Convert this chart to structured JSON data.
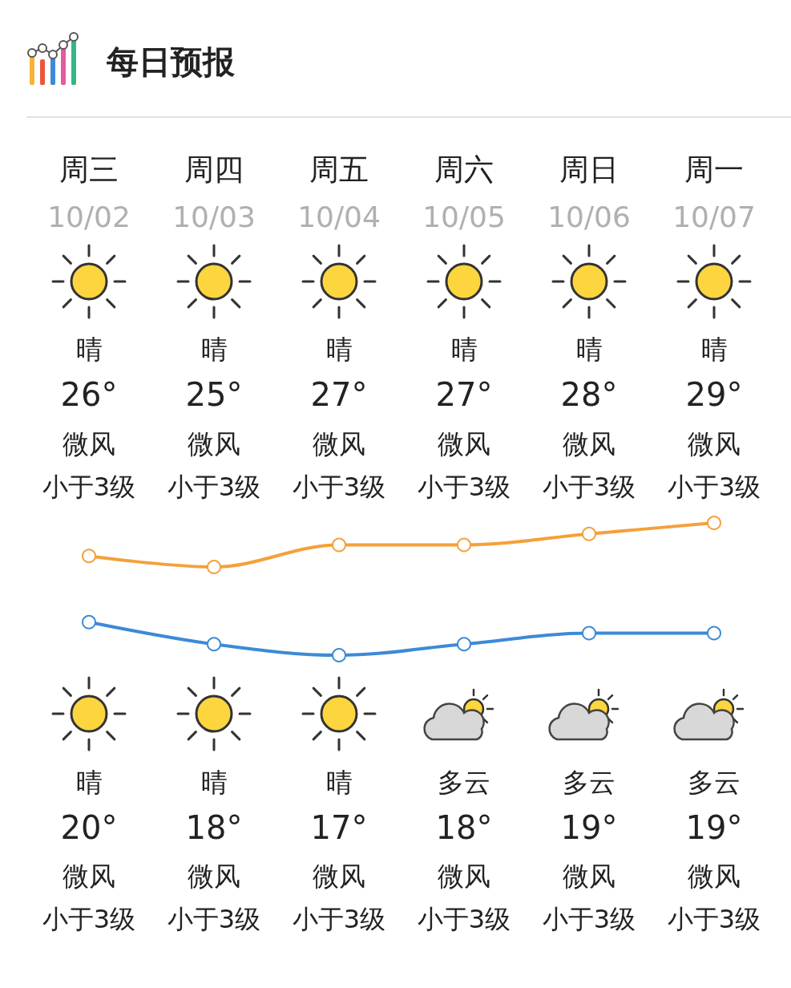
{
  "chart_data": {
    "type": "line",
    "title": "每日预报",
    "categories": [
      "周三",
      "周四",
      "周五",
      "周六",
      "周日",
      "周一"
    ],
    "series": [
      {
        "color": "#f5a03a",
        "values": [
          26,
          25,
          27,
          27,
          28,
          29
        ],
        "value_labels": [
          "26°",
          "25°",
          "27°",
          "27°",
          "28°",
          "29°"
        ]
      },
      {
        "color": "#3d8ad6",
        "values": [
          20,
          18,
          17,
          18,
          19,
          19
        ],
        "value_labels": [
          "20°",
          "18°",
          "17°",
          "18°",
          "19°",
          "19°"
        ]
      }
    ],
    "annotations": [
      "10/02",
      "晴",
      "微风",
      "小于3级",
      "晴",
      "微风",
      "小于3级",
      "10/03",
      "晴",
      "微风",
      "小于3级",
      "晴",
      "微风",
      "小于3级",
      "10/04",
      "晴",
      "微风",
      "小于3级",
      "晴",
      "微风",
      "小于3级",
      "10/05",
      "晴",
      "微风",
      "小于3级",
      "多云",
      "微风",
      "小于3级",
      "10/06",
      "晴",
      "微风",
      "小于3级",
      "多云",
      "微风",
      "小于3级",
      "10/07",
      "晴",
      "微风",
      "小于3级",
      "多云",
      "微风",
      "小于3级"
    ],
    "marker": "circle",
    "line_style": "solid",
    "grid": false,
    "tick_labels": "x"
  }
}
